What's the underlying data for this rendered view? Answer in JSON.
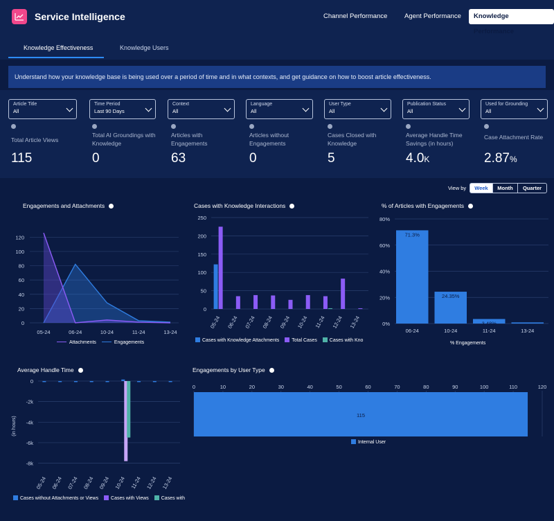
{
  "app": {
    "title": "Service Intelligence"
  },
  "top_nav": [
    {
      "label": "Channel Performance",
      "active": false
    },
    {
      "label": "Agent Performance",
      "active": false
    },
    {
      "label": "Knowledge Performance",
      "active": true
    }
  ],
  "sub_tabs": [
    {
      "label": "Knowledge Effectiveness",
      "active": true
    },
    {
      "label": "Knowledge Users",
      "active": false
    }
  ],
  "banner": "Understand how your knowledge base is being used over a period of time and in what contexts, and get guidance on how to boost article effectiveness.",
  "filters": [
    {
      "label": "Article Title",
      "value": "All"
    },
    {
      "label": "Time Period",
      "value": "Last 90 Days"
    },
    {
      "label": "Context",
      "value": "All"
    },
    {
      "label": "Language",
      "value": "All"
    },
    {
      "label": "User Type",
      "value": "All"
    },
    {
      "label": "Publication Status",
      "value": "All"
    },
    {
      "label": "Used for Grounding",
      "value": "All"
    }
  ],
  "kpis": [
    {
      "label": "Total Article Views",
      "value": "115",
      "suffix": ""
    },
    {
      "label": "Total AI Groundings with Knowledge",
      "value": "0",
      "suffix": ""
    },
    {
      "label": "Articles with Engagements",
      "value": "63",
      "suffix": ""
    },
    {
      "label": "Articles without Engagements",
      "value": "0",
      "suffix": ""
    },
    {
      "label": "Cases Closed with Knowledge",
      "value": "5",
      "suffix": ""
    },
    {
      "label": "Average Handle Time Savings (in hours)",
      "value": "4.0",
      "suffix": "K"
    },
    {
      "label": "Case Attachment Rate",
      "value": "2.87",
      "suffix": "%"
    }
  ],
  "view_by": {
    "label": "View by",
    "options": [
      "Week",
      "Month",
      "Quarter"
    ],
    "selected": "Week"
  },
  "colors": {
    "engagements": "#2f7de1",
    "attachments": "#8b5cf6",
    "teal": "#4fb3a8",
    "light_purple": "#c6a5f7",
    "bar_blue": "#2f7de1"
  },
  "charts": {
    "engagements_attachments": {
      "title": "Engagements and Attachments"
    },
    "cases_knowledge": {
      "title": "Cases with Knowledge Interactions"
    },
    "pct_articles": {
      "title": "% of Articles with Engagements"
    },
    "handle_time": {
      "title": "Average Handle Time"
    },
    "by_user_type": {
      "title": "Engagements by User Type"
    }
  },
  "chart_data": [
    {
      "type": "area",
      "title": "Engagements and Attachments",
      "x": [
        "05-24",
        "06-24",
        "10-24",
        "11-24",
        "13-24"
      ],
      "y_ticks": [
        "0",
        "20",
        "40",
        "60",
        "80",
        "100",
        "120"
      ],
      "ylim": [
        0,
        130
      ],
      "series": [
        {
          "name": "Attachments",
          "values": [
            126,
            0,
            4,
            1,
            0
          ]
        },
        {
          "name": "Engagements",
          "values": [
            0,
            82,
            28,
            3,
            1
          ]
        }
      ],
      "legend": "bottom"
    },
    {
      "type": "bar",
      "title": "Cases with Knowledge Interactions",
      "categories": [
        "05-24",
        "06-24",
        "07-24",
        "08-24",
        "09-24",
        "10-24",
        "11-24",
        "12-24",
        "13-24"
      ],
      "y_ticks": [
        "0",
        "50",
        "100",
        "150",
        "200",
        "250"
      ],
      "ylim": [
        0,
        250
      ],
      "series": [
        {
          "name": "Cases with Knowledge Attachments",
          "values": [
            122,
            0,
            0,
            0,
            0,
            0,
            0,
            0,
            0
          ]
        },
        {
          "name": "Total Cases",
          "values": [
            225,
            35,
            38,
            37,
            25,
            38,
            35,
            83,
            2
          ]
        },
        {
          "name": "Cases with Kno",
          "values": [
            0,
            0,
            0,
            0,
            0,
            0,
            2,
            0,
            0
          ]
        }
      ],
      "legend": "bottom"
    },
    {
      "type": "bar",
      "title": "% of Articles with Engagements",
      "categories": [
        "06-24",
        "10-24",
        "11-24",
        "13-24"
      ],
      "values": [
        71.3,
        24.35,
        3.48,
        0.87
      ],
      "data_labels": [
        "71.3%",
        "24.35%",
        "3.48%",
        "0.87%"
      ],
      "y_ticks": [
        "0%",
        "20%",
        "40%",
        "60%",
        "80%"
      ],
      "ylim": [
        0,
        80
      ],
      "xlabel": "% Engagements"
    },
    {
      "type": "bar",
      "title": "Average Handle Time",
      "categories": [
        "05-24",
        "06-24",
        "07-24",
        "08-24",
        "09-24",
        "10-24",
        "11-24",
        "12-24",
        "13-24"
      ],
      "y_ticks": [
        "0",
        "-2k",
        "-4k",
        "-6k",
        "-8k"
      ],
      "ylim": [
        -8500,
        0
      ],
      "ylabel": "(in hours)",
      "series": [
        {
          "name": "Cases without Attachments or Views",
          "values": [
            -20,
            -20,
            -20,
            -20,
            -20,
            150,
            -20,
            -20,
            -20
          ]
        },
        {
          "name": "Cases with Views",
          "values": [
            0,
            0,
            0,
            0,
            0,
            -7800,
            0,
            0,
            0
          ]
        },
        {
          "name": "Cases with",
          "values": [
            0,
            0,
            0,
            0,
            0,
            -5500,
            0,
            0,
            0
          ]
        }
      ],
      "legend": "bottom"
    },
    {
      "type": "bar",
      "title": "Engagements by User Type",
      "orientation": "horizontal",
      "categories": [
        "Internal User"
      ],
      "values": [
        115
      ],
      "data_labels": [
        "115"
      ],
      "x_ticks": [
        "0",
        "10",
        "20",
        "30",
        "40",
        "50",
        "60",
        "70",
        "80",
        "90",
        "100",
        "110",
        "120"
      ],
      "xlim": [
        0,
        120
      ],
      "legend": "bottom"
    }
  ]
}
